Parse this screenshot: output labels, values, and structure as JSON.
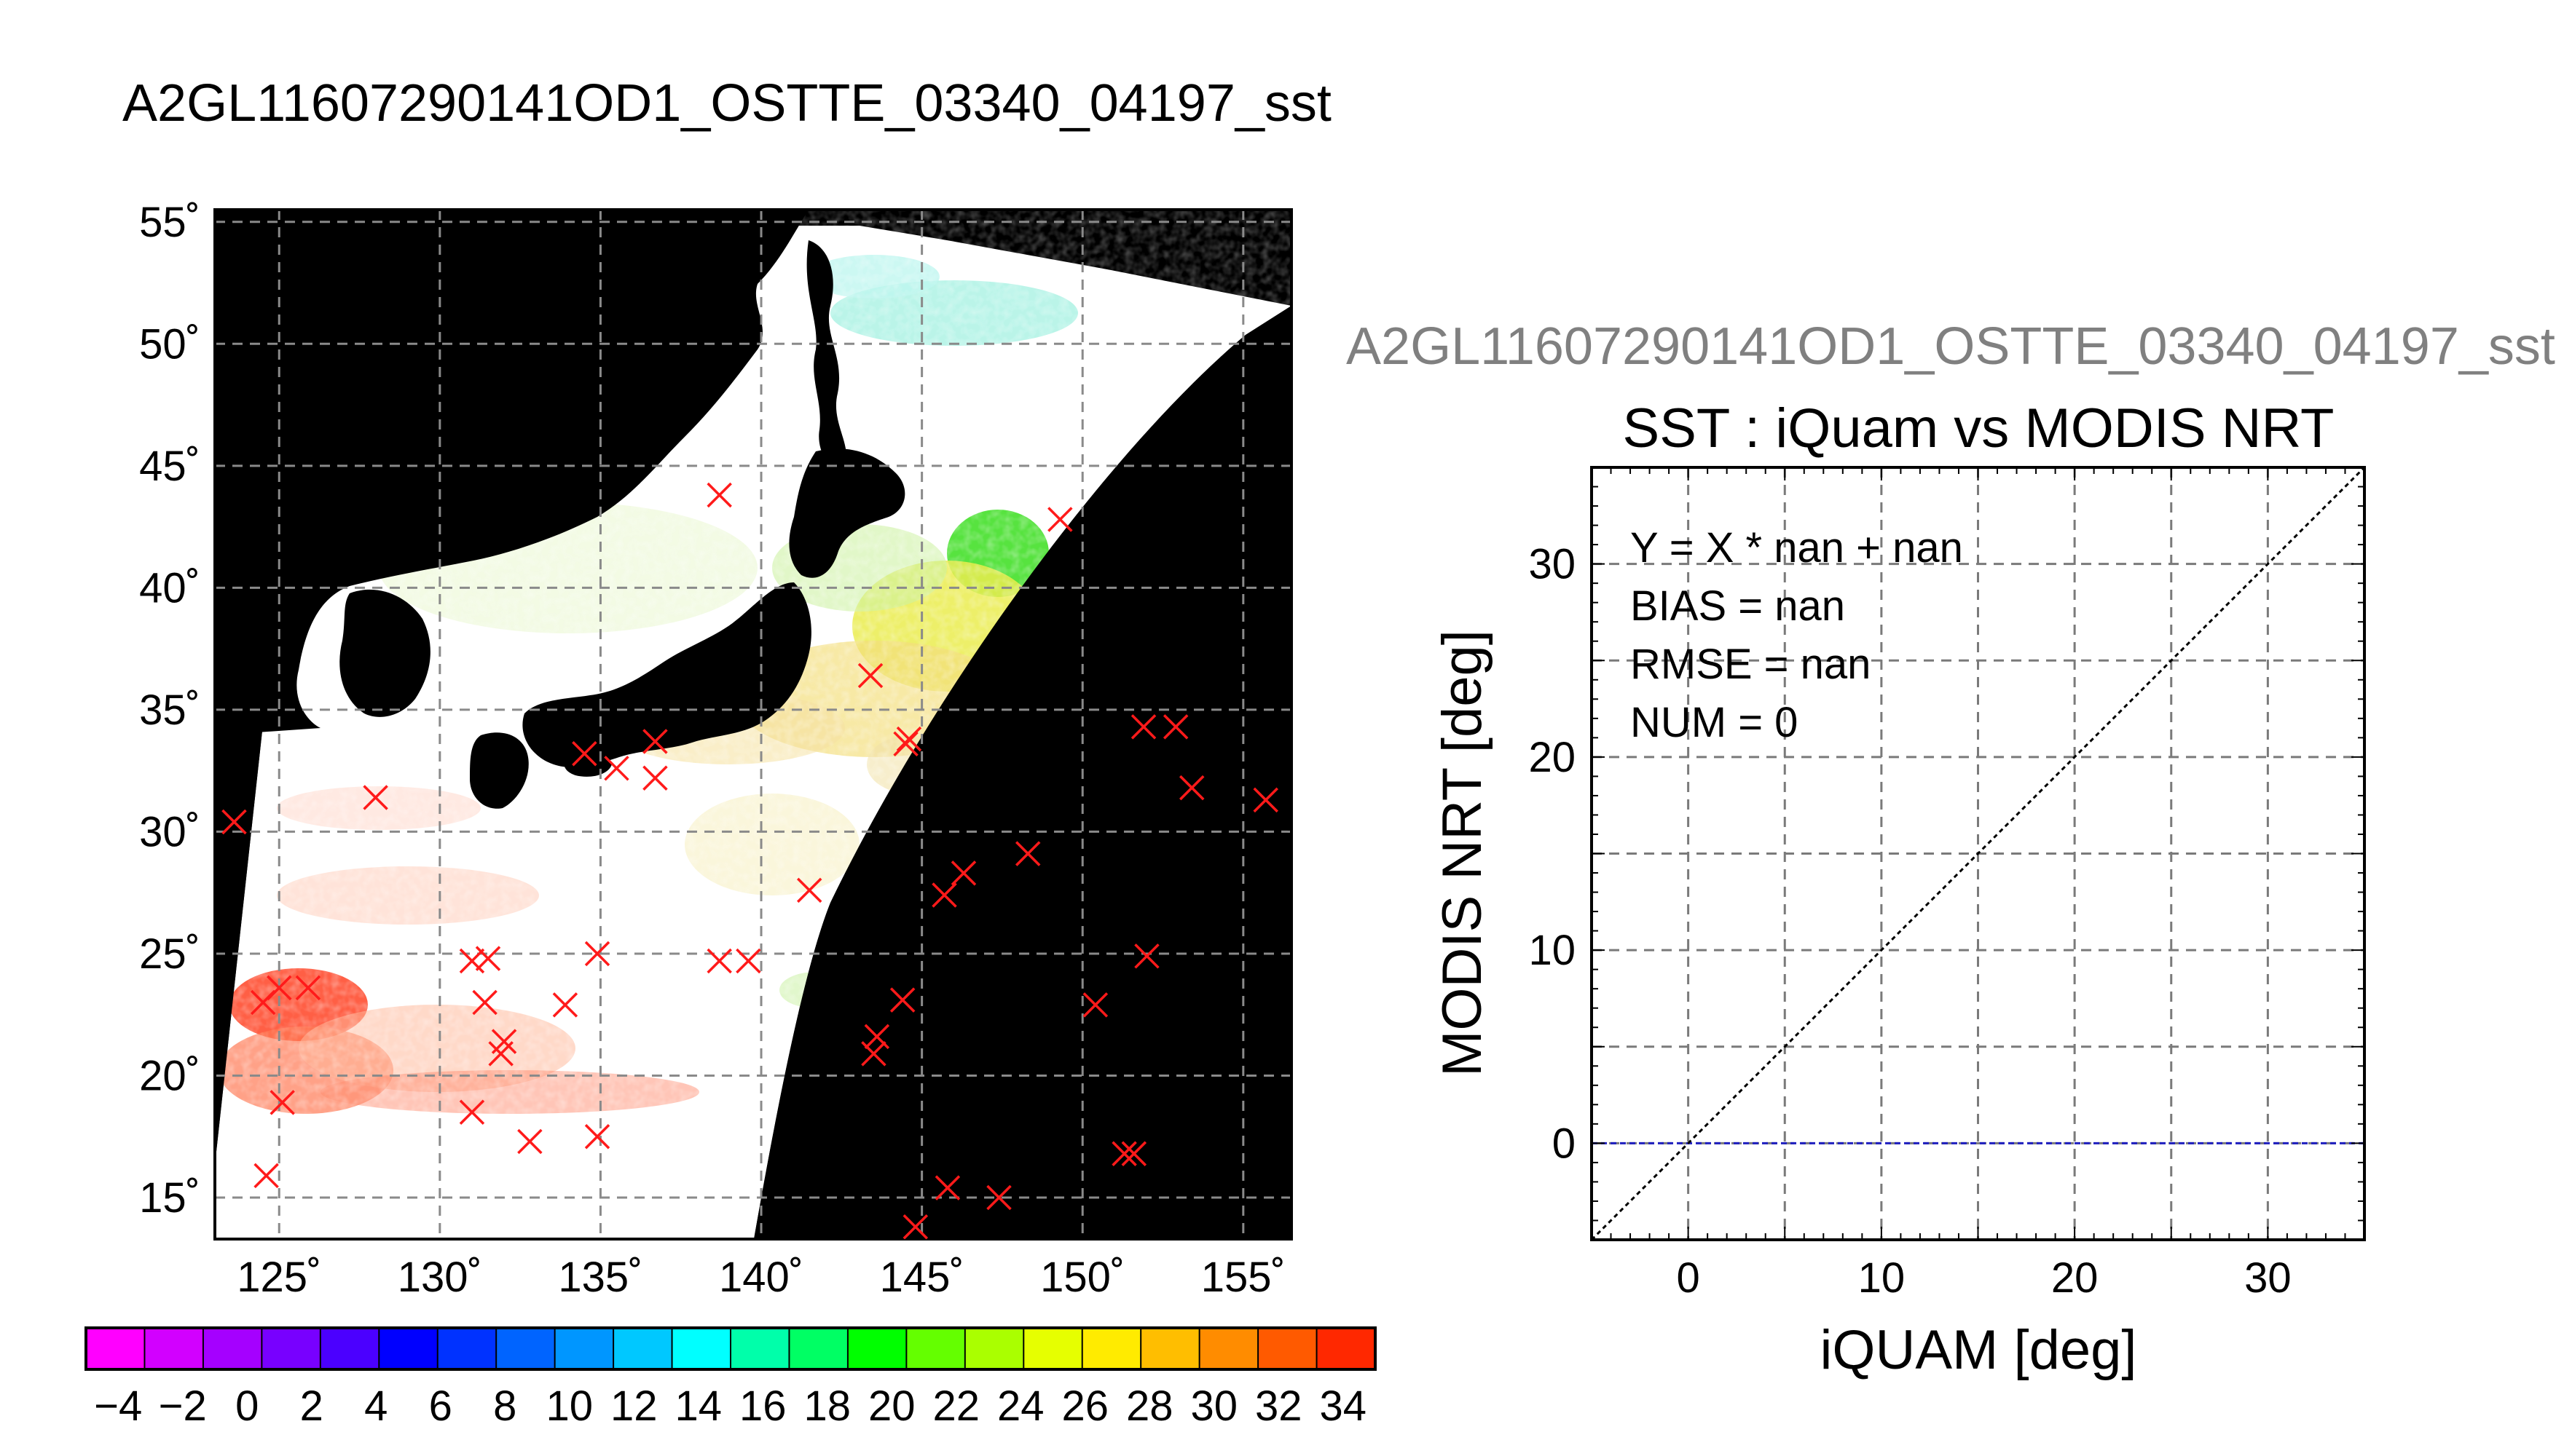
{
  "left_title": "A2GL11607290141OD1_OSTTE_03340_04197_sst",
  "right_title": "A2GL11607290141OD1_OSTTE_03340_04197_sst",
  "colors": {
    "ocean": "#000000",
    "swath_background": "#ffffff",
    "marker": "#ff1a1a",
    "one_to_one_line": "#000000",
    "zero_line": "#1f1fbf"
  },
  "chart_data": [
    {
      "type": "scatter",
      "title": "",
      "xlabel": "",
      "ylabel": "",
      "xlim": [
        123,
        156.5
      ],
      "ylim": [
        13.3,
        55.5
      ],
      "x_ticks": [
        125,
        130,
        135,
        140,
        145,
        150,
        155
      ],
      "y_ticks": [
        15,
        20,
        25,
        30,
        35,
        40,
        45,
        50,
        55
      ],
      "x_tick_labels": [
        "125˚",
        "130˚",
        "135˚",
        "140˚",
        "145˚",
        "150˚",
        "155˚"
      ],
      "y_tick_labels": [
        "15˚",
        "20˚",
        "25˚",
        "30˚",
        "35˚",
        "40˚",
        "45˚",
        "50˚",
        "55˚"
      ],
      "grid": true,
      "series": [
        {
          "marker": "x",
          "x": [
            138.7,
            149.3,
            143.4,
            144.6,
            144.5,
            134.5,
            135.5,
            136.7,
            136.7,
            151.9,
            152.9,
            153.4,
            155.7,
            123.6,
            128.0,
            141.5,
            146.3,
            145.7,
            148.3,
            125.0,
            125.9,
            124.5,
            131.0,
            131.5,
            131.4,
            134.9,
            133.9,
            138.7,
            139.6,
            132.0,
            131.9,
            152.0,
            150.4,
            144.4,
            143.6,
            143.5,
            125.1,
            131.0,
            132.8,
            134.9,
            124.6,
            151.3,
            151.6,
            145.8,
            147.4,
            144.8
          ],
          "y": [
            43.8,
            42.8,
            36.4,
            33.8,
            33.6,
            33.2,
            32.6,
            33.7,
            32.2,
            34.3,
            34.3,
            31.8,
            31.3,
            30.4,
            31.4,
            27.6,
            28.3,
            27.4,
            29.1,
            23.6,
            23.6,
            23.0,
            24.7,
            24.8,
            23.0,
            25.0,
            22.9,
            24.7,
            24.7,
            21.4,
            20.9,
            24.9,
            22.9,
            23.1,
            21.6,
            20.9,
            18.9,
            18.5,
            17.3,
            17.5,
            15.9,
            16.8,
            16.8,
            15.4,
            15.0,
            13.8
          ]
        }
      ]
    },
    {
      "type": "scatter",
      "title": "SST : iQuam vs MODIS NRT",
      "xlabel": "iQUAM [deg]",
      "ylabel": "MODIS NRT [deg]",
      "xlim": [
        -5,
        35
      ],
      "ylim": [
        -5,
        35
      ],
      "x_ticks": [
        0,
        10,
        20,
        30
      ],
      "y_ticks": [
        0,
        10,
        20,
        30
      ],
      "minor_grid_step": 5,
      "grid": true,
      "annotations": [
        "Y = X * nan + nan",
        "BIAS = nan",
        "RMSE = nan",
        "NUM = 0"
      ],
      "reference_lines": [
        {
          "kind": "one-to-one",
          "style": "dotted"
        },
        {
          "kind": "y = 0",
          "style": "dashed"
        }
      ],
      "series": [
        {
          "x": [],
          "y": []
        }
      ]
    }
  ],
  "colorbar": {
    "type": "colorbar",
    "min": -5,
    "max": 35,
    "step": 2,
    "tick_labels": [
      "-4",
      "-2",
      "0",
      "2",
      "4",
      "6",
      "8",
      "10",
      "12",
      "14",
      "16",
      "18",
      "20",
      "22",
      "24",
      "26",
      "28",
      "30",
      "32",
      "34"
    ],
    "colors": [
      "#ff00ff",
      "#d200ff",
      "#a500ff",
      "#7800ff",
      "#4b00ff",
      "#0000ff",
      "#0032ff",
      "#0064ff",
      "#0096ff",
      "#00c8ff",
      "#00ffff",
      "#00ffaa",
      "#00ff64",
      "#00ff00",
      "#64ff00",
      "#aaff00",
      "#e6ff00",
      "#ffeb00",
      "#ffbe00",
      "#ff8c00",
      "#ff5a00",
      "#ff2800"
    ]
  }
}
